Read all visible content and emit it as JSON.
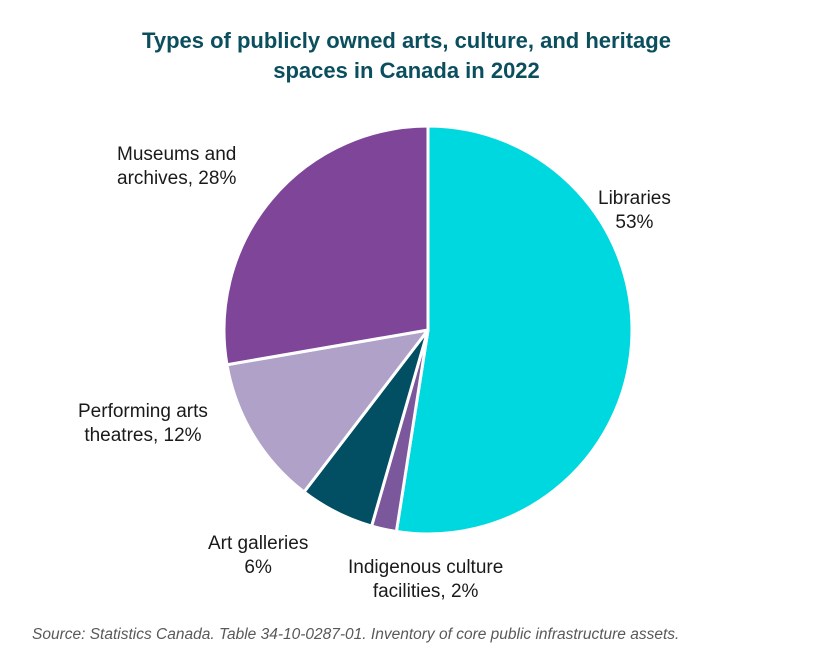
{
  "chart_data": {
    "type": "pie",
    "title_lines": [
      "Types of publicly owned arts, culture, and heritage",
      "spaces in Canada in 2022"
    ],
    "slices": [
      {
        "label": "Libraries",
        "value": 53,
        "value_text": "53%",
        "color": "#00d8e0"
      },
      {
        "label": "Indigenous culture facilities",
        "value": 2,
        "value_text": "2%",
        "color": "#7b579c"
      },
      {
        "label": "Art galleries",
        "value": 6,
        "value_text": "6%",
        "color": "#024e62"
      },
      {
        "label": "Performing arts theatres",
        "value": 12,
        "value_text": "12%",
        "color": "#b0a1c8"
      },
      {
        "label": "Museums and archives",
        "value": 28,
        "value_text": "28%",
        "color": "#7e4599"
      }
    ],
    "start_angle": "12 o'clock",
    "direction": "clockwise",
    "legend": "none (direct data labels)"
  },
  "labels": {
    "libraries": [
      "Libraries",
      "53%"
    ],
    "indigenous": [
      "Indigenous culture",
      "facilities, 2%"
    ],
    "art_galleries": [
      "Art galleries",
      "6%"
    ],
    "performing": [
      "Performing arts",
      "theatres, 12%"
    ],
    "museums": [
      "Museums and",
      "archives, 28%"
    ]
  },
  "source": "Source: Statistics Canada. Table 34-10-0287-01. Inventory of core public infrastructure assets."
}
